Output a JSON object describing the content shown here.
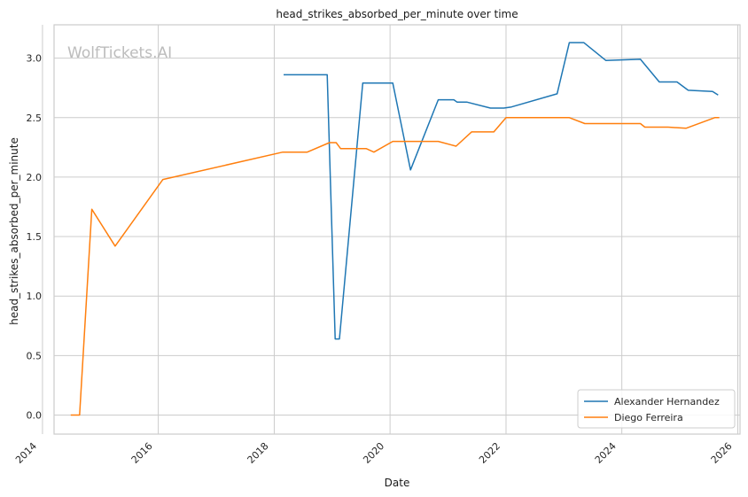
{
  "chart_data": {
    "type": "line",
    "title": "head_strikes_absorbed_per_minute over time",
    "xlabel": "Date",
    "ylabel": "head_strikes_absorbed_per_minute",
    "watermark": "WolfTickets.AI",
    "x_ticks": [
      "2014",
      "2016",
      "2018",
      "2020",
      "2022",
      "2024",
      "2026"
    ],
    "y_ticks": [
      "0.0",
      "0.5",
      "1.0",
      "1.5",
      "2.0",
      "2.5",
      "3.0"
    ],
    "xlim": [
      "2014-03-15",
      "2026-01-15"
    ],
    "ylim": [
      -0.16,
      3.28
    ],
    "grid": true,
    "legend_position": "lower-right",
    "series": [
      {
        "name": "Alexander Hernandez",
        "color": "#1f77b4",
        "points": [
          [
            "2018-03-01",
            2.86
          ],
          [
            "2018-12-01",
            2.86
          ],
          [
            "2019-01-20",
            0.64
          ],
          [
            "2019-02-16",
            0.64
          ],
          [
            "2019-07-13",
            2.79
          ],
          [
            "2020-01-18",
            2.79
          ],
          [
            "2020-05-09",
            2.06
          ],
          [
            "2020-10-31",
            2.65
          ],
          [
            "2021-02-06",
            2.65
          ],
          [
            "2021-02-27",
            2.63
          ],
          [
            "2021-05-01",
            2.63
          ],
          [
            "2021-09-25",
            2.58
          ],
          [
            "2021-12-18",
            2.58
          ],
          [
            "2022-02-05",
            2.59
          ],
          [
            "2022-11-19",
            2.7
          ],
          [
            "2023-02-04",
            3.13
          ],
          [
            "2023-05-06",
            3.13
          ],
          [
            "2023-09-23",
            2.98
          ],
          [
            "2024-04-27",
            2.99
          ],
          [
            "2024-08-24",
            2.8
          ],
          [
            "2024-12-14",
            2.8
          ],
          [
            "2025-02-22",
            2.73
          ],
          [
            "2025-07-26",
            2.72
          ],
          [
            "2025-08-30",
            2.69
          ]
        ]
      },
      {
        "name": "Diego Ferreira",
        "color": "#ff7f0e",
        "points": [
          [
            "2014-06-28",
            0.0
          ],
          [
            "2014-08-23",
            0.0
          ],
          [
            "2014-11-08",
            1.73
          ],
          [
            "2015-04-04",
            1.42
          ],
          [
            "2016-01-30",
            1.98
          ],
          [
            "2018-02-24",
            2.21
          ],
          [
            "2018-07-28",
            2.21
          ],
          [
            "2018-12-15",
            2.29
          ],
          [
            "2019-01-26",
            2.29
          ],
          [
            "2019-02-23",
            2.24
          ],
          [
            "2019-08-03",
            2.24
          ],
          [
            "2019-09-21",
            2.21
          ],
          [
            "2020-01-18",
            2.3
          ],
          [
            "2020-10-31",
            2.3
          ],
          [
            "2021-02-20",
            2.26
          ],
          [
            "2021-05-29",
            2.38
          ],
          [
            "2021-10-16",
            2.38
          ],
          [
            "2022-01-01",
            2.5
          ],
          [
            "2023-02-04",
            2.5
          ],
          [
            "2023-05-13",
            2.45
          ],
          [
            "2024-04-27",
            2.45
          ],
          [
            "2024-05-25",
            2.42
          ],
          [
            "2024-10-19",
            2.42
          ],
          [
            "2025-02-08",
            2.41
          ],
          [
            "2025-08-09",
            2.5
          ],
          [
            "2025-09-06",
            2.5
          ]
        ]
      }
    ]
  }
}
